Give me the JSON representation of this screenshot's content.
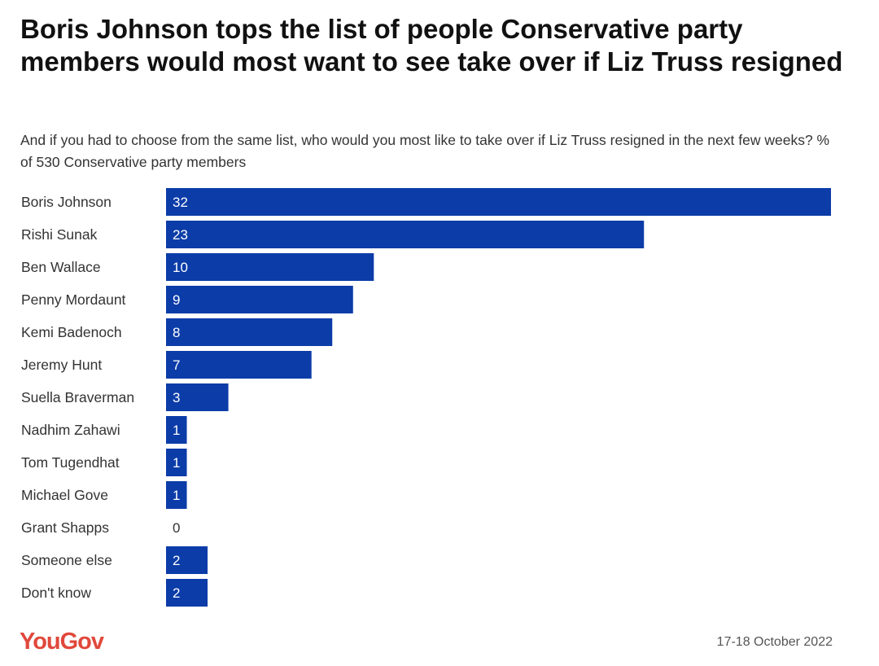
{
  "title": "Boris Johnson tops the list of people Conservative party members would most want to see take over if Liz Truss resigned",
  "subtitle": "And if you had to choose from the same list, who would you most like to take over if Liz Truss resigned in the next few weeks? % of 530 Conservative party members",
  "footer": {
    "logo": "YouGov",
    "date": "17-18 October 2022"
  },
  "colors": {
    "bar": "#0b3ca8",
    "logo": "#e0483b"
  },
  "chart_data": {
    "type": "bar",
    "orientation": "horizontal",
    "categories": [
      "Boris Johnson",
      "Rishi Sunak",
      "Ben Wallace",
      "Penny Mordaunt",
      "Kemi Badenoch",
      "Jeremy Hunt",
      "Suella Braverman",
      "Nadhim Zahawi",
      "Tom Tugendhat",
      "Michael Gove",
      "Grant Shapps",
      "Someone else",
      "Don't know"
    ],
    "values": [
      32,
      23,
      10,
      9,
      8,
      7,
      3,
      1,
      1,
      1,
      0,
      2,
      2
    ],
    "xlim": [
      0,
      32
    ],
    "grid": false,
    "data_labels": true
  }
}
